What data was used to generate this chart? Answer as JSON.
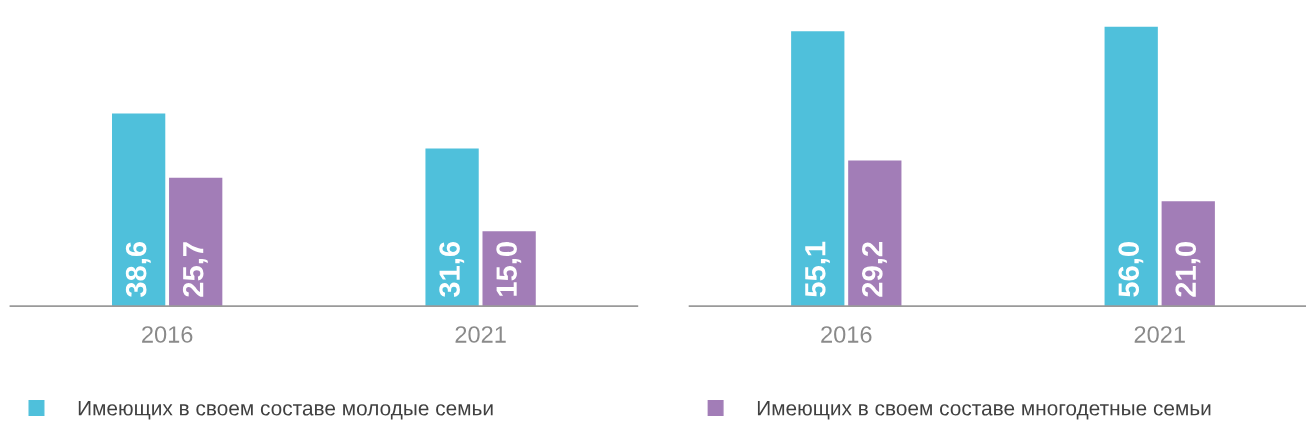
{
  "chart_data": [
    {
      "type": "bar",
      "categories": [
        "2016",
        "2021"
      ],
      "legend": "bottom",
      "grid": false,
      "tick_labels": "x",
      "series": [
        {
          "name": "Имеющих в своем составе молодые семьи",
          "color": "#4fc0db",
          "values": [
            38.6,
            31.6
          ],
          "value_labels": [
            "38,6",
            "31,6"
          ]
        },
        {
          "color": "#a27db7",
          "values": [
            25.7,
            15.0
          ],
          "value_labels": [
            "25,7",
            "15,0"
          ]
        }
      ]
    },
    {
      "type": "bar",
      "categories": [
        "2016",
        "2021"
      ],
      "legend": "bottom",
      "grid": false,
      "tick_labels": "x",
      "series": [
        {
          "color": "#4fc0db",
          "values": [
            55.1,
            56.0
          ],
          "value_labels": [
            "55,1",
            "56,0"
          ]
        },
        {
          "name": "Имеющих в своем составе многодетные семьи",
          "color": "#a27db7",
          "values": [
            29.2,
            21.0
          ],
          "value_labels": [
            "29,2",
            "21,0"
          ]
        }
      ]
    }
  ]
}
